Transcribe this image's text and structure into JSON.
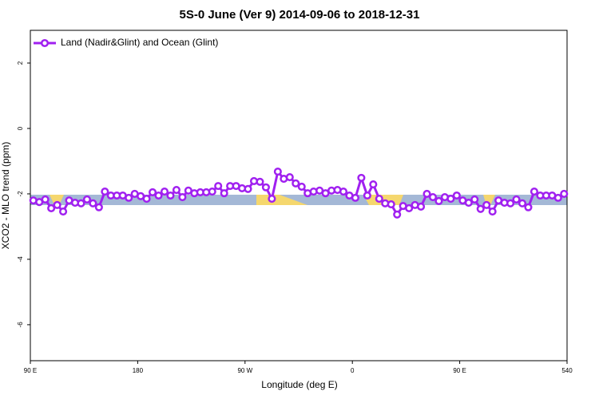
{
  "chart_data": {
    "type": "line",
    "title": "5S-0 June (Ver 9)   2014-09-06 to 2018-12-31",
    "x_label": "Longitude (deg E)",
    "y_label": "XCO2 - MLO trend (ppm)",
    "xlim": [
      90,
      540
    ],
    "ylim": [
      -7.1,
      3
    ],
    "xticks": [
      {
        "value": 90,
        "label": "90 E"
      },
      180,
      {
        "value": 270,
        "label": "90 W"
      },
      {
        "value": 360,
        "label": "0"
      },
      {
        "value": 450,
        "label": "90 E"
      },
      540
    ],
    "yticks": [
      2,
      0,
      -2,
      -4,
      -6
    ],
    "legend_position": "top-left",
    "x": [
      92.5,
      97.5,
      102.5,
      107.5,
      112.5,
      117.5,
      122.5,
      127.5,
      132.5,
      137.5,
      142.5,
      147.5,
      152.5,
      157.5,
      162.5,
      167.5,
      172.5,
      177.5,
      182.5,
      187.5,
      192.5,
      197.5,
      202.5,
      207.5,
      212.5,
      217.5,
      222.5,
      227.5,
      232.5,
      237.5,
      242.5,
      247.5,
      252.5,
      257.5,
      262.5,
      267.5,
      272.5,
      277.5,
      282.5,
      287.5,
      292.5,
      297.5,
      302.5,
      307.5,
      312.5,
      317.5,
      322.5,
      327.5,
      332.5,
      337.5,
      342.5,
      347.5,
      352.5,
      357.5,
      362.5,
      367.5,
      372.5,
      377.5,
      382.5,
      387.5,
      392.5,
      397.5,
      402.5,
      407.5,
      412.5,
      417.5,
      422.5,
      427.5,
      432.5,
      437.5,
      442.5,
      447.5,
      452.5,
      457.5,
      462.5,
      467.5,
      472.5,
      477.5,
      482.5,
      487.5,
      492.5,
      497.5,
      502.5,
      507.5,
      512.5,
      517.5,
      522.5,
      527.5,
      532.5,
      537.5
    ],
    "series": [
      {
        "name": "Land (Nadir&Glint) and Ocean (Glint)",
        "color": "#a020f0",
        "values": [
          -2.2,
          -2.25,
          -2.17,
          -2.44,
          -2.34,
          -2.54,
          -2.2,
          -2.27,
          -2.29,
          -2.17,
          -2.29,
          -2.41,
          -1.93,
          -2.05,
          -2.05,
          -2.05,
          -2.12,
          -2.0,
          -2.07,
          -2.15,
          -1.95,
          -2.05,
          -1.93,
          -2.05,
          -1.88,
          -2.1,
          -1.9,
          -1.98,
          -1.95,
          -1.95,
          -1.93,
          -1.76,
          -1.98,
          -1.76,
          -1.76,
          -1.83,
          -1.85,
          -1.61,
          -1.63,
          -1.8,
          -2.15,
          -1.32,
          -1.54,
          -1.49,
          -1.68,
          -1.78,
          -1.98,
          -1.93,
          -1.9,
          -1.98,
          -1.9,
          -1.88,
          -1.93,
          -2.05,
          -2.12,
          -1.51,
          -2.05,
          -1.71,
          -2.15,
          -2.29,
          -2.32,
          -2.63,
          -2.37,
          -2.44,
          -2.34,
          -2.39,
          -2.0,
          -2.1,
          -2.22,
          -2.1,
          -2.15,
          -2.05,
          -2.2,
          -2.27,
          -2.17,
          -2.46,
          -2.34,
          -2.54,
          -2.2,
          -2.27,
          -2.29,
          -2.17,
          -2.29,
          -2.41,
          -1.93,
          -2.05,
          -2.05,
          -2.05,
          -2.12,
          -2.0
        ]
      }
    ]
  }
}
